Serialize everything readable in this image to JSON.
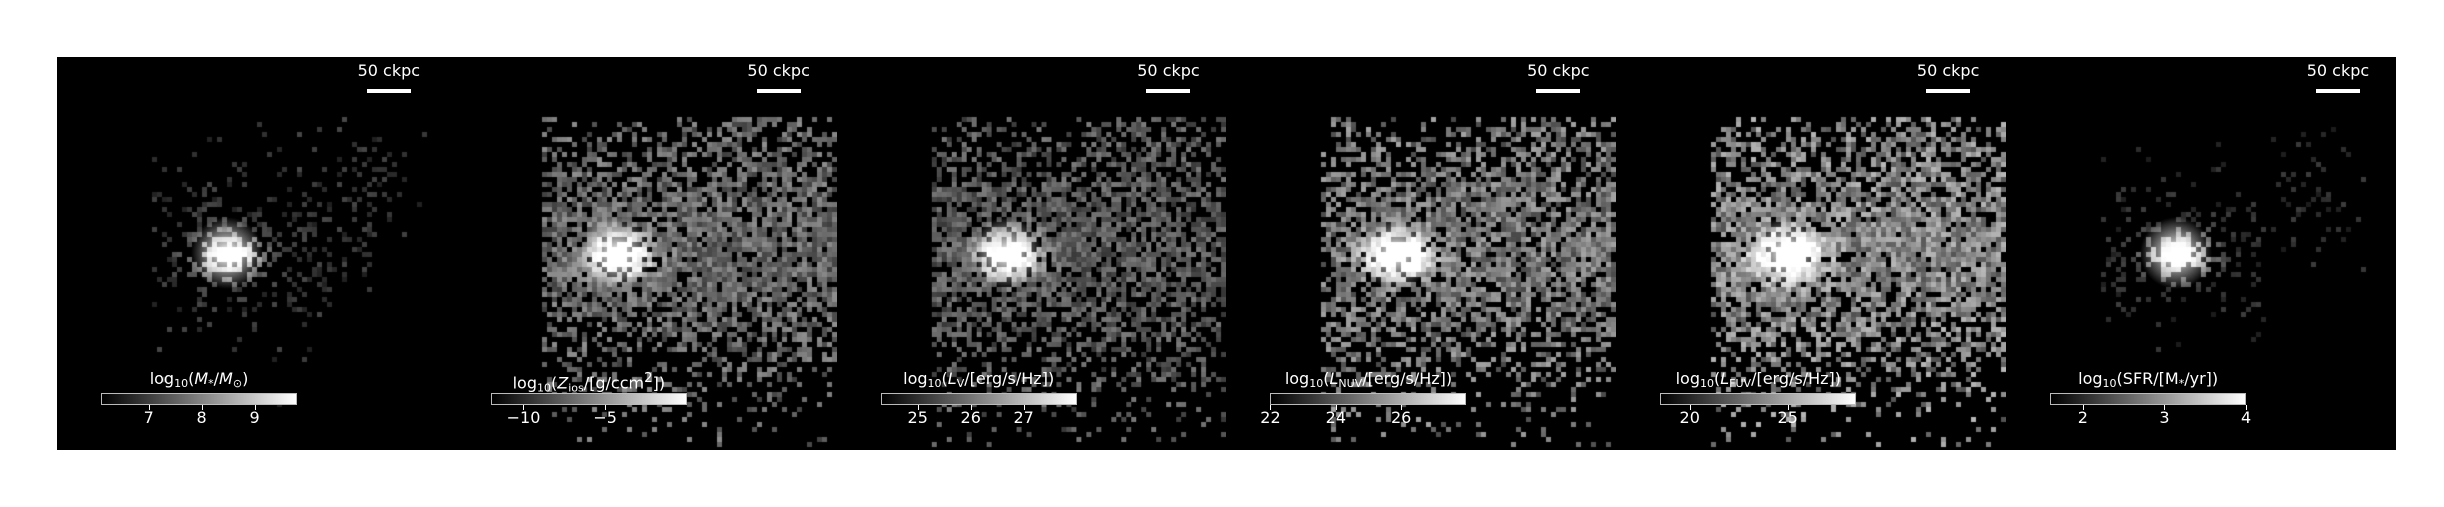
{
  "figure": {
    "background_color": "#000000",
    "colormap": "gray",
    "panels": [
      {
        "id": "stellar-mass",
        "scalebar_label": "50 ckpc",
        "colorbar": {
          "title_html": "log<sub>10</sub>(<i>M</i><sub>*</sub>/<i>M</i><sub>⊙</sub>)",
          "range": [
            6.1,
            9.8
          ],
          "ticks": [
            {
              "value": 7,
              "label": "7"
            },
            {
              "value": 8,
              "label": "8"
            },
            {
              "value": 9,
              "label": "9"
            }
          ]
        },
        "look": {
          "spread": 0.55,
          "core_brightness": 1.0,
          "fill": 0.35,
          "tail_brightness": 0.35
        }
      },
      {
        "id": "metallicity",
        "scalebar_label": "50 ckpc",
        "colorbar": {
          "title_html": "log<sub>10</sub>(<i>Z</i><sub>ios</sub>/[g/ccm<sup>2</sup>])",
          "range": [
            -12,
            0
          ],
          "ticks": [
            {
              "value": -10,
              "label": "−10"
            },
            {
              "value": -5,
              "label": "−5"
            }
          ]
        },
        "look": {
          "spread": 1.0,
          "core_brightness": 0.95,
          "fill": 0.85,
          "tail_brightness": 0.7
        }
      },
      {
        "id": "luminosity-v",
        "scalebar_label": "50 ckpc",
        "colorbar": {
          "title_html": "log<sub>10</sub>(<i>L</i><sub>V</sub>/[erg/s/Hz])",
          "range": [
            24.3,
            28
          ],
          "ticks": [
            {
              "value": 25,
              "label": "25"
            },
            {
              "value": 26,
              "label": "26"
            },
            {
              "value": 27,
              "label": "27"
            }
          ]
        },
        "look": {
          "spread": 1.0,
          "core_brightness": 0.95,
          "fill": 0.8,
          "tail_brightness": 0.6
        }
      },
      {
        "id": "luminosity-nuv",
        "scalebar_label": "50 ckpc",
        "colorbar": {
          "title_html": "log<sub>10</sub>(<i>L</i><sub>NUV</sub>/[erg/s/Hz])",
          "range": [
            22,
            28
          ],
          "ticks": [
            {
              "value": 22,
              "label": "22"
            },
            {
              "value": 24,
              "label": "24"
            },
            {
              "value": 26,
              "label": "26"
            }
          ]
        },
        "look": {
          "spread": 1.0,
          "core_brightness": 0.95,
          "fill": 0.85,
          "tail_brightness": 0.8
        }
      },
      {
        "id": "luminosity-fuv",
        "scalebar_label": "50 ckpc",
        "colorbar": {
          "title_html": "log<sub>10</sub>(<i>L</i><sub>FUV</sub>/[erg/s/Hz])",
          "range": [
            18.5,
            28.5
          ],
          "ticks": [
            {
              "value": 20,
              "label": "20"
            },
            {
              "value": 25,
              "label": "25"
            }
          ]
        },
        "look": {
          "spread": 1.0,
          "core_brightness": 0.97,
          "fill": 0.9,
          "tail_brightness": 0.9
        }
      },
      {
        "id": "sfr",
        "scalebar_label": "50 ckpc",
        "colorbar": {
          "title_html": "log<sub>10</sub>(SFR/[M<sub>*</sub>/yr])",
          "range": [
            1.6,
            4
          ],
          "ticks": [
            {
              "value": 2,
              "label": "2"
            },
            {
              "value": 3,
              "label": "3"
            },
            {
              "value": 4,
              "label": "4"
            }
          ]
        },
        "look": {
          "spread": 0.5,
          "core_brightness": 1.0,
          "fill": 0.25,
          "tail_brightness": 0.3
        }
      }
    ]
  }
}
